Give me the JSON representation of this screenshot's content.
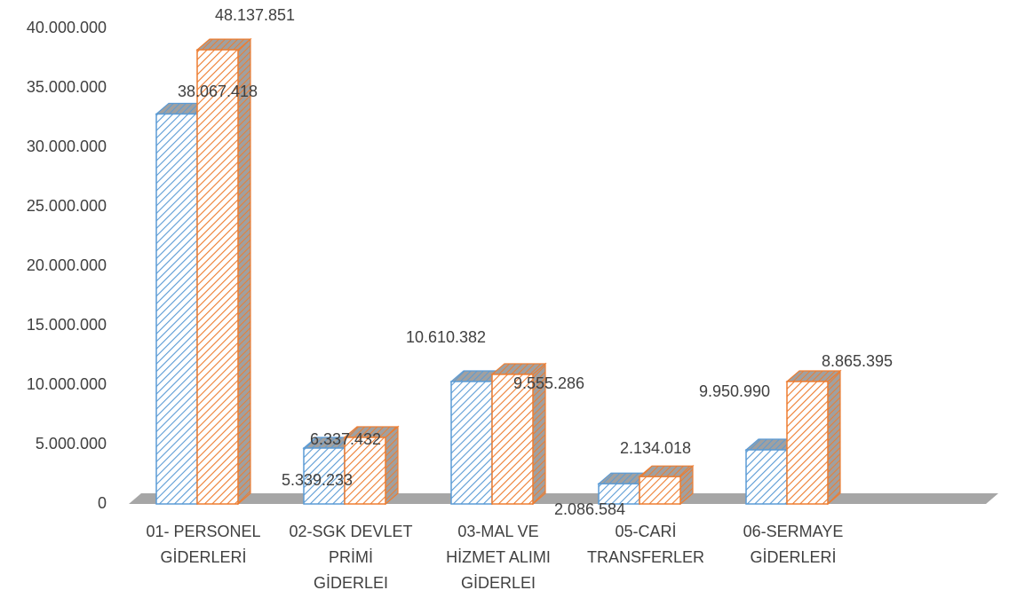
{
  "chart_data": {
    "type": "bar3d",
    "categories": [
      "01- PERSONEL\nGİDERLERİ",
      "02-SGK DEVLET\nPRİMİ\nGİDERLEI",
      "03-MAL VE\nHİZMET ALIMI\nGİDERLEI",
      "05-CARİ\nTRANSFERLER",
      "06-SERMAYE\nGİDERLERİ"
    ],
    "series": [
      {
        "color": "#5b9bd5",
        "values": [
          32800000,
          4700000,
          10300000,
          1700000,
          4550000
        ]
      },
      {
        "color": "#ed7d31",
        "values": [
          38200000,
          5600000,
          10900000,
          2300000,
          10300000
        ]
      }
    ],
    "annotations": [
      "48.137.851",
      "38.067.418",
      "6.337.432",
      "5.339.233",
      "10.610.382",
      "9.555.286",
      "2.134.018",
      "2.086.584",
      "8.865.395",
      "9.950.990"
    ],
    "ylim": [
      0,
      40000000
    ],
    "yticks": [
      0,
      {
        "value": 5000000,
        "label": "5.000.000"
      },
      {
        "value": 10000000,
        "label": "10.000.000"
      },
      {
        "value": 15000000,
        "label": "15.000.000"
      },
      {
        "value": 20000000,
        "label": "20.000.000"
      },
      {
        "value": 25000000,
        "label": "25.000.000"
      },
      {
        "value": 30000000,
        "label": "30.000.000"
      },
      {
        "value": 35000000,
        "label": "35.000.000"
      },
      {
        "value": 40000000,
        "label": "40.000.000"
      }
    ],
    "grid": false
  }
}
